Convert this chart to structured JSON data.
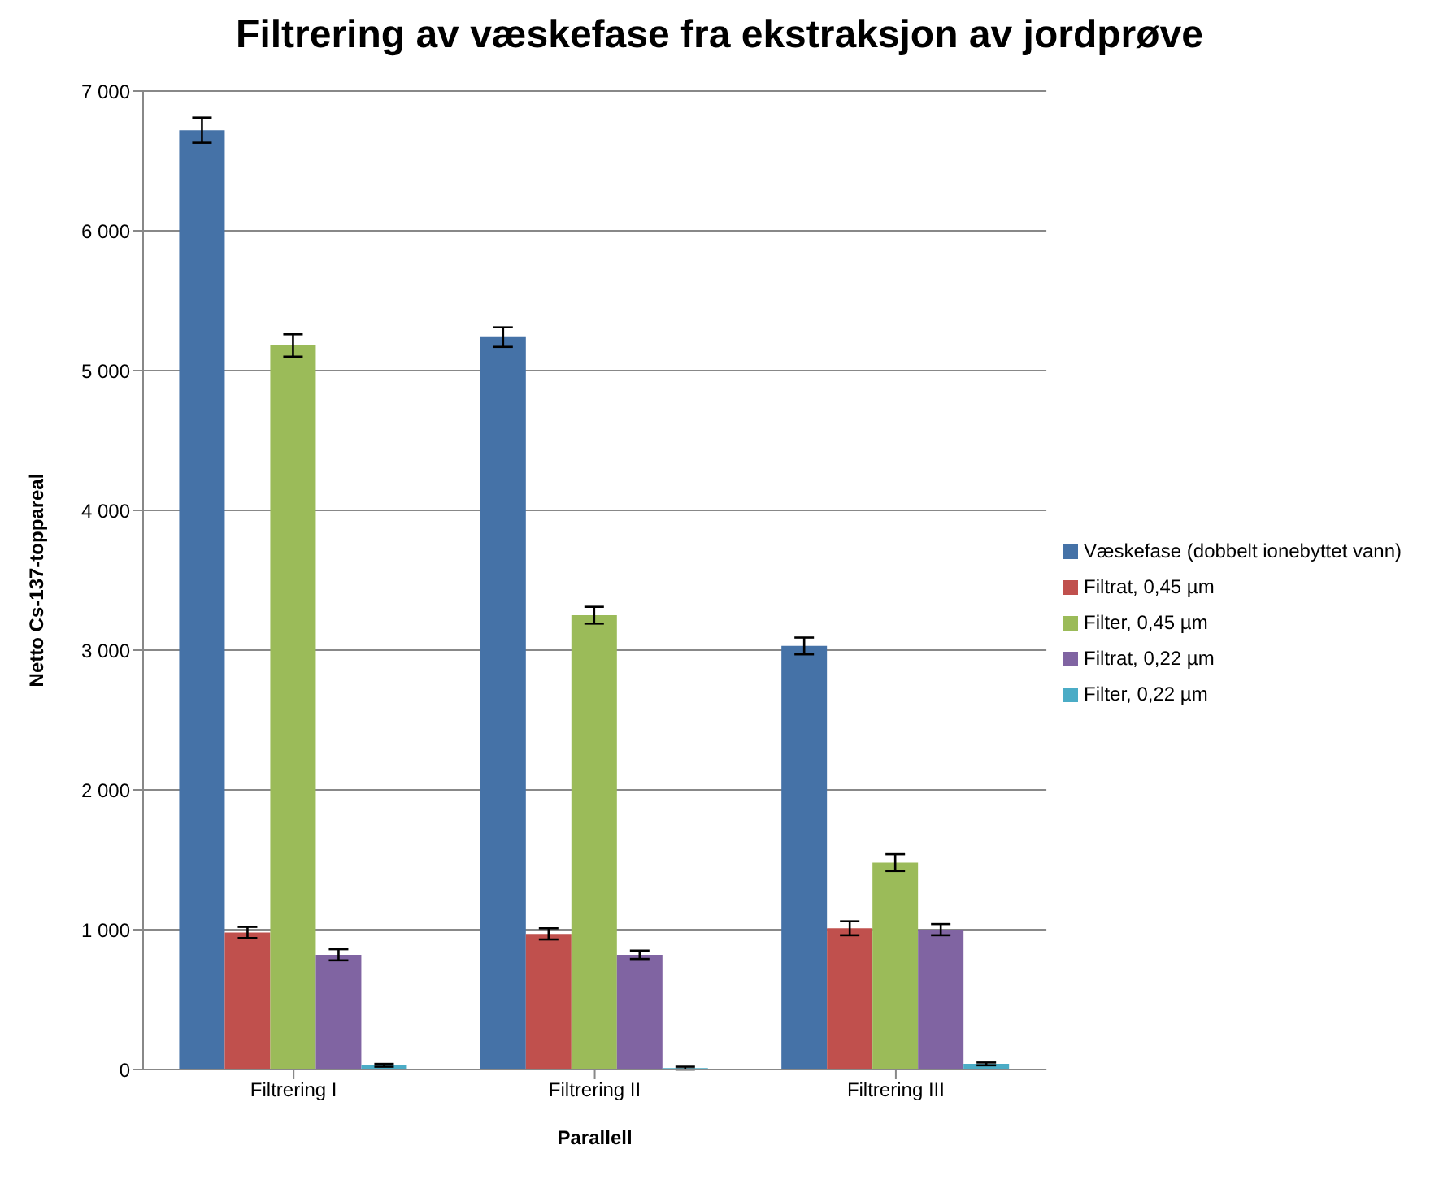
{
  "chart_data": {
    "type": "bar",
    "title": "Filtrering av væskefase fra ekstraksjon av jordprøve",
    "xlabel": "Parallell",
    "ylabel": "Netto Cs-137-toppareal",
    "categories": [
      "Filtrering I",
      "Filtrering II",
      "Filtrering III"
    ],
    "series": [
      {
        "name": "Væskefase (dobbelt ionebyttet vann)",
        "color": "#4572a7",
        "values": [
          6720,
          5240,
          3030
        ],
        "errors": [
          90,
          70,
          60
        ]
      },
      {
        "name": "Filtrat, 0,45 µm",
        "color": "#c0504d",
        "values": [
          980,
          970,
          1010
        ],
        "errors": [
          40,
          40,
          50
        ]
      },
      {
        "name": "Filter, 0,45 µm",
        "color": "#9bbb59",
        "values": [
          5180,
          3250,
          1480
        ],
        "errors": [
          80,
          60,
          60
        ]
      },
      {
        "name": "Filtrat, 0,22 µm",
        "color": "#8064a2",
        "values": [
          820,
          820,
          1000
        ],
        "errors": [
          40,
          30,
          40
        ]
      },
      {
        "name": "Filter, 0,22 µm",
        "color": "#4bacc6",
        "values": [
          30,
          10,
          40
        ],
        "errors": [
          10,
          10,
          10
        ]
      }
    ],
    "ylim": [
      0,
      7000
    ],
    "yticks": [
      {
        "value": 0,
        "label": "0"
      },
      {
        "value": 1000,
        "label": "1 000"
      },
      {
        "value": 2000,
        "label": "2 000"
      },
      {
        "value": 3000,
        "label": "3 000"
      },
      {
        "value": 4000,
        "label": "4 000"
      },
      {
        "value": 5000,
        "label": "5 000"
      },
      {
        "value": 6000,
        "label": "6 000"
      },
      {
        "value": 7000,
        "label": "7 000"
      }
    ],
    "grid": "y",
    "legend": "right"
  }
}
